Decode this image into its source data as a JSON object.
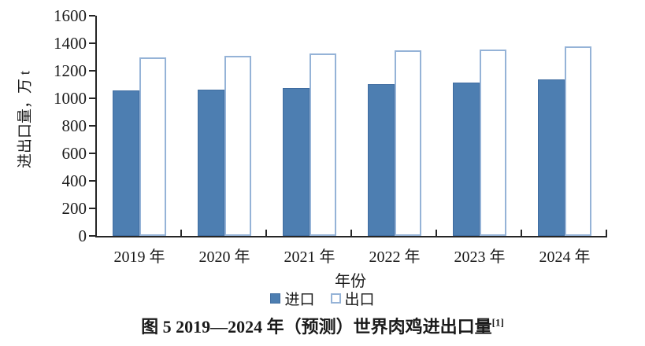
{
  "chart_data": {
    "type": "bar",
    "title": "",
    "categories": [
      "2019 年",
      "2020 年",
      "2021 年",
      "2022 年",
      "2023 年",
      "2024 年"
    ],
    "series": [
      {
        "name": "进口",
        "values": [
          1055,
          1065,
          1075,
          1105,
          1115,
          1135
        ],
        "fill": "#4D7EB1",
        "border": "#3F6CA0"
      },
      {
        "name": "出口",
        "values": [
          1300,
          1310,
          1325,
          1350,
          1355,
          1380
        ],
        "fill": "#FFFFFF",
        "border": "#95B3D7"
      }
    ],
    "xlabel": "年份",
    "ylabel": "进出口量，万 t",
    "ylim": [
      0,
      1600
    ],
    "ytick_step": 200,
    "grid": false,
    "legend_position": "bottom"
  },
  "caption": {
    "text": "图 5  2019—2024 年（预测）世界肉鸡进出口量",
    "ref": "[1]"
  },
  "colors": {
    "axis": "#262626",
    "import_bar": "#4D7EB1",
    "export_bar_border": "#95B3D7",
    "text": "#1A1A1A"
  }
}
